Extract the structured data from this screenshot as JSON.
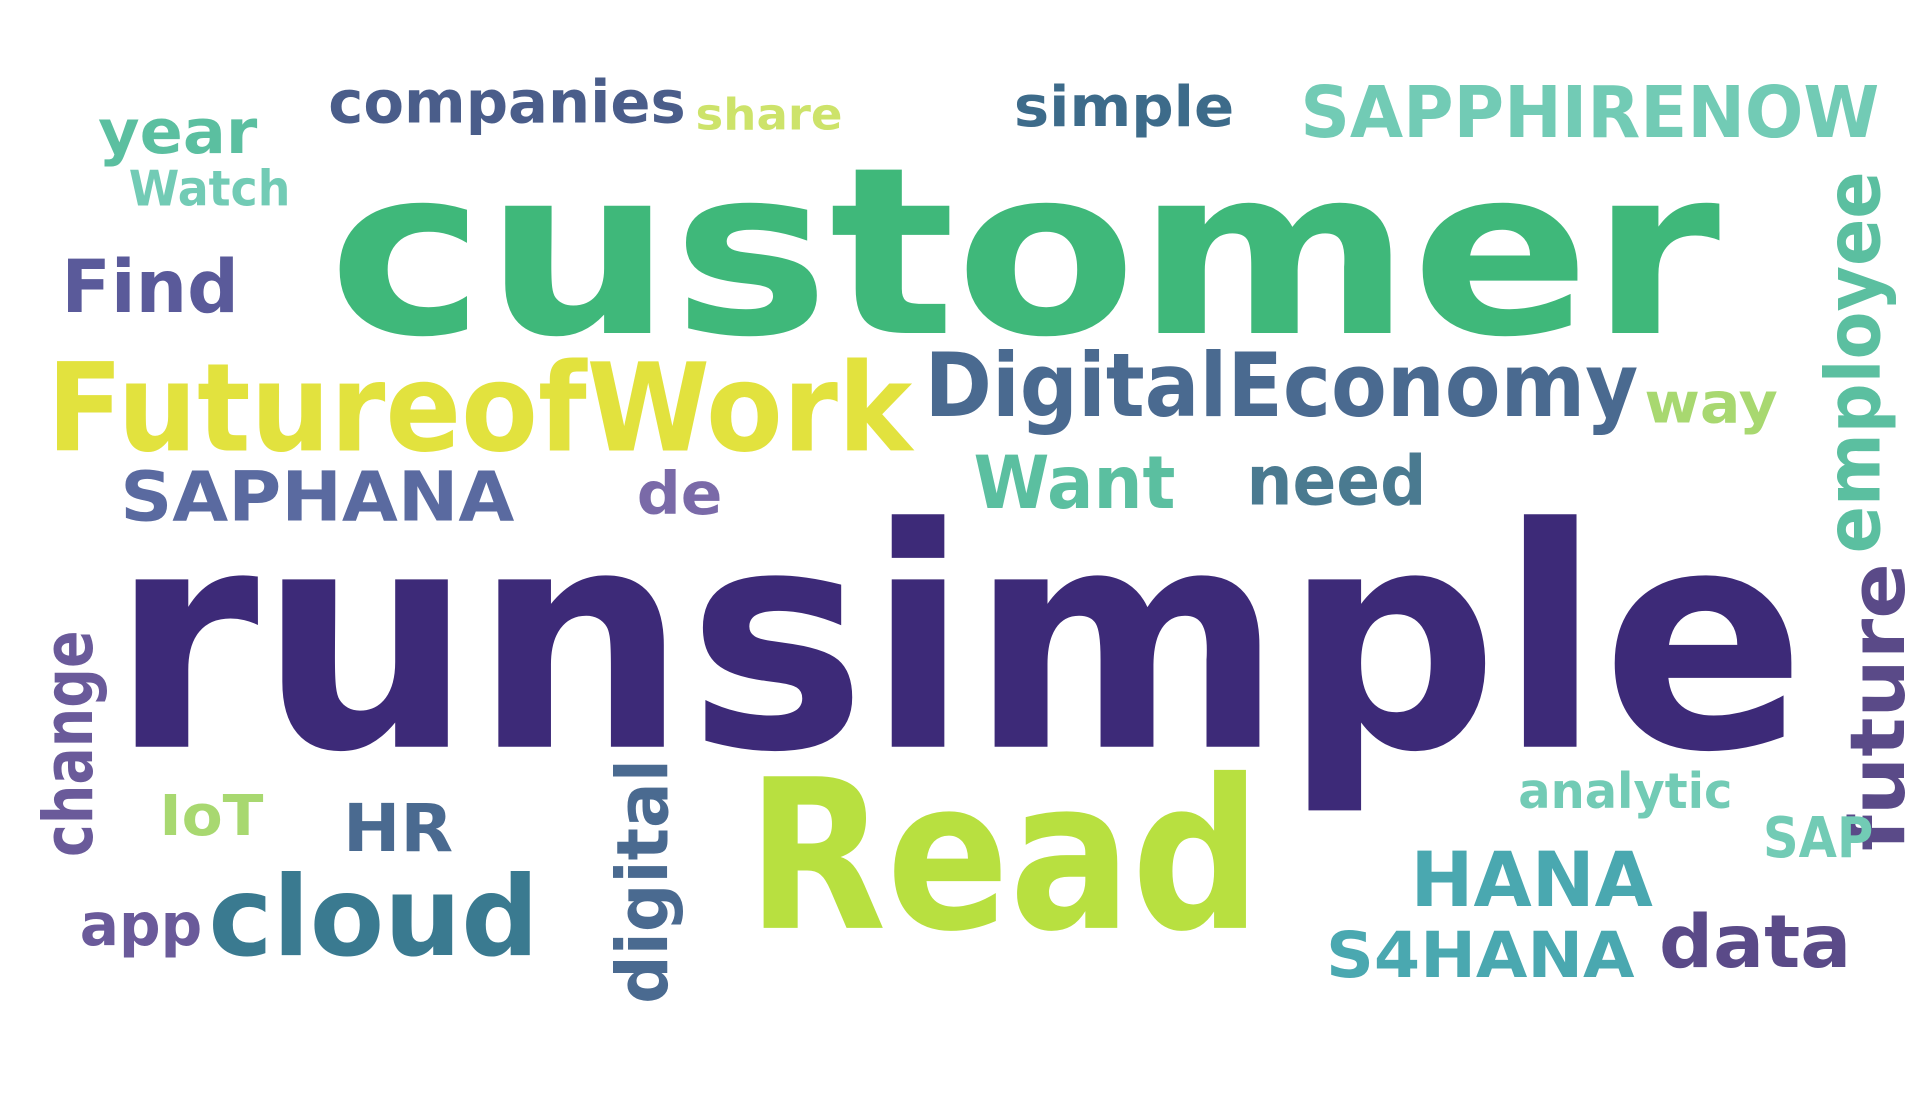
{
  "words": [
    "companies",
    "share",
    "simple",
    "SAPPHIRENOW",
    "year",
    "Watch",
    "customer",
    "employee",
    "Find",
    "FutureofWork",
    "DigitalEconomy",
    "way",
    "SAPHANA",
    "de",
    "Want",
    "need",
    "runsimple",
    "change",
    "digital",
    "future",
    "IoT",
    "HR",
    "Read",
    "analytic",
    "SAP",
    "HANA",
    "app",
    "cloud",
    "S4HANA",
    "data"
  ]
}
